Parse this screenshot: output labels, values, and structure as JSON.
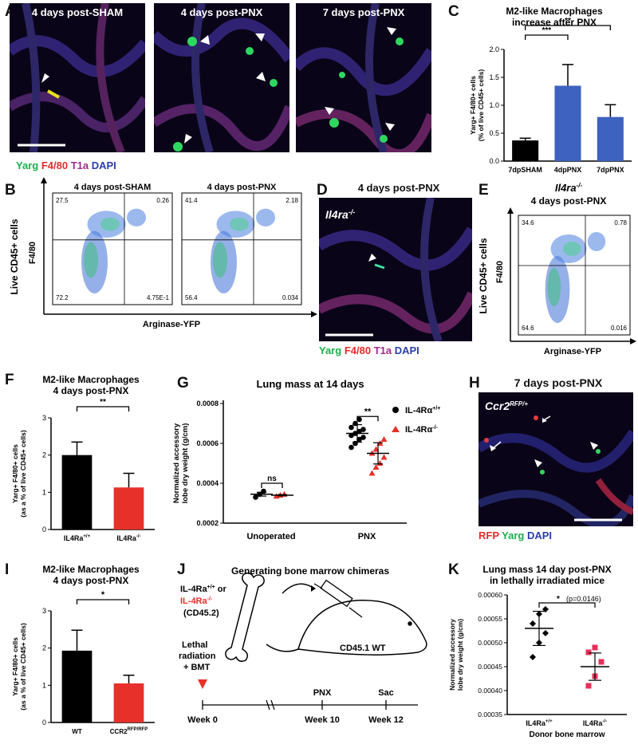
{
  "panels": {
    "A": {
      "label": "A",
      "titles": [
        "4 days post-SHAM",
        "4 days post-PNX",
        "7 days post-PNX"
      ],
      "stain": {
        "a": "Yarg",
        "b": "F4/80",
        "c": "T1a",
        "d": "DAPI"
      }
    },
    "B": {
      "label": "B",
      "titles": [
        "4 days post-SHAM",
        "4 days post-PNX"
      ],
      "ylabel_outer": "Live CD45+ cells",
      "ylabel": "F4/80",
      "xlabel": "Arginase-YFP",
      "quadrants": [
        [
          "27.5",
          "0.26",
          "72.2",
          "4.75E-1"
        ],
        [
          "41.4",
          "2.18",
          "56.4",
          "0.034"
        ]
      ]
    },
    "C": {
      "label": "C"
    },
    "D": {
      "label": "D",
      "title": "4 days post-PNX",
      "genotype": "Il4ra",
      "stain": {
        "a": "Yarg",
        "b": "F4/80",
        "c": "T1a",
        "d": "DAPI"
      }
    },
    "E": {
      "label": "E",
      "title": "Il4ra",
      "subtitle": "4 days post-PNX",
      "ylabel_outer": "Live CD45+ cells",
      "ylabel": "F4/80",
      "xlabel": "Arginase-YFP",
      "quadrants": [
        "34.6",
        "0.78",
        "64.6",
        "0.016"
      ]
    },
    "F": {
      "label": "F"
    },
    "G": {
      "label": "G"
    },
    "H": {
      "label": "H",
      "title": "7 days post-PNX",
      "genotype": "Ccr2",
      "stain": {
        "a": "RFP",
        "b": "Yarg",
        "c": "DAPI"
      }
    },
    "I": {
      "label": "I"
    },
    "J": {
      "label": "J",
      "title": "Generating bone marrow chimeras",
      "donor_a": "IL-4Ra",
      "donor_b": "IL-4Ra",
      "donor_c": "(CD45.2)",
      "recipient": "CD45.1 WT",
      "step_a": "Lethal",
      "step_b": "radiation",
      "step_c": "+ BMT",
      "timeline": [
        {
          "event": "",
          "week": "Week 0"
        },
        {
          "event": "PNX",
          "week": "Week 10"
        },
        {
          "event": "Sac",
          "week": "Week 12"
        }
      ]
    },
    "K": {
      "label": "K"
    }
  },
  "chart_data": [
    {
      "id": "C",
      "type": "bar",
      "title": "M2-like Macrophages increase after PNX",
      "ylabel": "Yarg+ F4/80+ cells (% of live CD45+ cells)",
      "categories": [
        "7dpSHAM",
        "4dpPNX",
        "7dpPNX"
      ],
      "values": [
        0.37,
        1.35,
        0.79
      ],
      "errors": [
        0.04,
        0.38,
        0.22
      ],
      "colors": [
        "#000000",
        "#3e62bf",
        "#3e62bf"
      ],
      "ylim": [
        0,
        2.0
      ],
      "yticks": [
        "0.0",
        "0.5",
        "1.0",
        "1.5",
        "2.0"
      ],
      "significance": [
        "***",
        "**"
      ]
    },
    {
      "id": "F",
      "type": "bar",
      "title": "M2-like Macrophages 4 days post-PNX",
      "ylabel": "Yarg+ F4/80+ cells (as a % of live CD45+ cells)",
      "categories": [
        "IL4Ra+/+",
        "IL4Ra-/-"
      ],
      "values": [
        2.0,
        1.13
      ],
      "errors": [
        0.35,
        0.38
      ],
      "colors": [
        "#000000",
        "#e8302a"
      ],
      "ylim": [
        0,
        3
      ],
      "yticks": [
        "0",
        "1",
        "2",
        "3"
      ],
      "significance": [
        "**"
      ]
    },
    {
      "id": "G",
      "type": "scatter",
      "title": "Lung mass at 14 days",
      "ylabel": "Normalized accessory lobe dry weight (g/cm)",
      "categories": [
        "Unoperated",
        "PNX"
      ],
      "yticks": [
        "0.0002",
        "0.0004",
        "0.0006",
        "0.0008"
      ],
      "ylim": [
        0.0002,
        0.0008
      ],
      "series": [
        {
          "name": "IL-4Rα+/+",
          "groups": [
            [
              0.00033,
              0.000345,
              0.00036
            ],
            [
              0.00058,
              0.0006,
              0.00062,
              0.00063,
              0.00064,
              0.00065,
              0.00066,
              0.00067,
              0.00068,
              0.0007,
              0.00072
            ]
          ],
          "means": [
            0.000345,
            0.00065
          ]
        },
        {
          "name": "IL-4Rα-/-",
          "groups": [
            [
              0.000335,
              0.00034,
              0.000345
            ],
            [
              0.00045,
              0.00048,
              0.0005,
              0.00053,
              0.00055,
              0.00057,
              0.0006,
              0.00062
            ]
          ],
          "means": [
            0.00034,
            0.00055
          ]
        }
      ],
      "significance": [
        "ns",
        "**"
      ]
    },
    {
      "id": "I",
      "type": "bar",
      "title": "M2-like Macrophages 4 days post-PNX",
      "ylabel": "Yarg+ F4/80+ cells (as a % of live CD45+ cells)",
      "categories": [
        "WT",
        "CCR2RFP/RFP"
      ],
      "values": [
        1.93,
        1.05
      ],
      "errors": [
        0.55,
        0.22
      ],
      "colors": [
        "#000000",
        "#e8302a"
      ],
      "ylim": [
        0,
        3
      ],
      "yticks": [
        "0",
        "1",
        "2",
        "3"
      ],
      "significance": [
        "*"
      ]
    },
    {
      "id": "K",
      "type": "scatter",
      "title": "Lung mass 14 day post-PNX in lethally irradiated mice",
      "ylabel": "Normalized accessory lobe dry weight (g/cm)",
      "xlabel": "Donor bone marrow",
      "categories": [
        "IL4Ra+/+",
        "IL4Ra-/-"
      ],
      "yticks": [
        "0.00035",
        "0.00040",
        "0.00045",
        "0.00050",
        "0.00055",
        "0.00060"
      ],
      "ylim": [
        0.00035,
        0.0006
      ],
      "series": [
        {
          "name": "IL4Ra+/+",
          "values": [
            0.00047,
            0.0005,
            0.00052,
            0.00054,
            0.00056,
            0.00057
          ],
          "mean": 0.00053
        },
        {
          "name": "IL4Ra-/-",
          "values": [
            0.00041,
            0.00043,
            0.00046,
            0.00048,
            0.00049
          ],
          "mean": 0.00045
        }
      ],
      "significance": [
        "*",
        "(p=0.0146)"
      ]
    }
  ]
}
